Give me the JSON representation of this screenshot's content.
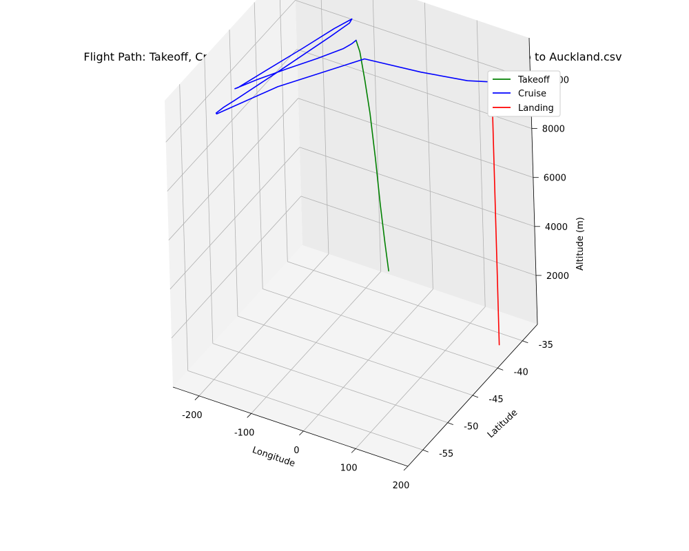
{
  "chart_data": {
    "type": "line",
    "title": "Flight Path: Takeoff, Cruise, Landing - Interpolated_LLH_SH Flight LA801 Santiago to Auckland.csv",
    "xlabel": "Longitude",
    "ylabel": "Latitude",
    "zlabel": "Altitude (m)",
    "x_ticks": [
      -200,
      -100,
      0,
      100,
      200
    ],
    "y_ticks": [
      -55,
      -50,
      -45,
      -40,
      -35
    ],
    "z_ticks": [
      2000,
      4000,
      6000,
      8000,
      10000
    ],
    "grid": true,
    "legend_position": "top-right",
    "series": [
      {
        "name": "Takeoff",
        "color": "#008000",
        "points": [
          {
            "lon": -70.8,
            "lat": -33.4,
            "alt": 550
          },
          {
            "lon": -71.5,
            "lat": -33.9,
            "alt": 1800
          },
          {
            "lon": -72.4,
            "lat": -34.5,
            "alt": 3500
          },
          {
            "lon": -73.2,
            "lat": -35.1,
            "alt": 5500
          },
          {
            "lon": -74.2,
            "lat": -35.8,
            "alt": 7500
          },
          {
            "lon": -75.4,
            "lat": -36.5,
            "alt": 9000
          },
          {
            "lon": -76.5,
            "lat": -37.2,
            "alt": 10300
          },
          {
            "lon": -77.3,
            "lat": -37.8,
            "alt": 10900
          }
        ]
      },
      {
        "name": "Cruise",
        "color": "#0000ff",
        "points": [
          {
            "lon": -77.3,
            "lat": -37.8,
            "alt": 10900
          },
          {
            "lon": -79.0,
            "lat": -38.5,
            "alt": 10900
          },
          {
            "lon": -85.0,
            "lat": -39.6,
            "alt": 10900
          },
          {
            "lon": -110.0,
            "lat": -42.2,
            "alt": 10900
          },
          {
            "lon": -140.0,
            "lat": -45.0,
            "alt": 10900
          },
          {
            "lon": -170.0,
            "lat": -48.0,
            "alt": 10900
          },
          {
            "lon": -190.0,
            "lat": -50.3,
            "alt": 10900
          },
          {
            "lon": -187.0,
            "lat": -50.0,
            "alt": 10900
          },
          {
            "lon": -170.0,
            "lat": -46.5,
            "alt": 10900
          },
          {
            "lon": -145.0,
            "lat": -41.5,
            "alt": 10900
          },
          {
            "lon": -125.0,
            "lat": -37.2,
            "alt": 10900
          },
          {
            "lon": -112.0,
            "lat": -35.0,
            "alt": 10900
          },
          {
            "lon": -110.0,
            "lat": -35.7,
            "alt": 10900
          },
          {
            "lon": -120.0,
            "lat": -38.5,
            "alt": 10900
          },
          {
            "lon": -150.0,
            "lat": -46.0,
            "alt": 10900
          },
          {
            "lon": -175.0,
            "lat": -52.0,
            "alt": 10900
          },
          {
            "lon": -182.0,
            "lat": -53.5,
            "alt": 10900
          },
          {
            "lon": -185.0,
            "lat": -54.6,
            "alt": 10900
          },
          {
            "lon": -183.0,
            "lat": -54.7,
            "alt": 10900
          },
          {
            "lon": -130.0,
            "lat": -48.0,
            "alt": 10900
          },
          {
            "lon": -40.0,
            "lat": -40.0,
            "alt": 10900
          },
          {
            "lon": 60.0,
            "lat": -39.2,
            "alt": 10900
          },
          {
            "lon": 140.0,
            "lat": -38.2,
            "alt": 10900
          },
          {
            "lon": 174.0,
            "lat": -37.3,
            "alt": 10900
          },
          {
            "lon": 176.2,
            "lat": -37.0,
            "alt": 10900
          },
          {
            "lon": 174.7,
            "lat": -37.0,
            "alt": 10800
          },
          {
            "lon": 174.8,
            "lat": -37.0,
            "alt": 10500
          }
        ]
      },
      {
        "name": "Landing",
        "color": "#ff0000",
        "points": [
          {
            "lon": 174.8,
            "lat": -37.0,
            "alt": 10500
          },
          {
            "lon": 174.8,
            "lat": -37.0,
            "alt": 8000
          },
          {
            "lon": 174.8,
            "lat": -37.0,
            "alt": 5500
          },
          {
            "lon": 174.8,
            "lat": -37.0,
            "alt": 3000
          },
          {
            "lon": 174.8,
            "lat": -37.0,
            "alt": 1200
          },
          {
            "lon": 174.8,
            "lat": -37.0,
            "alt": 600
          },
          {
            "lon": 174.7,
            "lat": -37.0,
            "alt": 100
          }
        ]
      }
    ]
  }
}
